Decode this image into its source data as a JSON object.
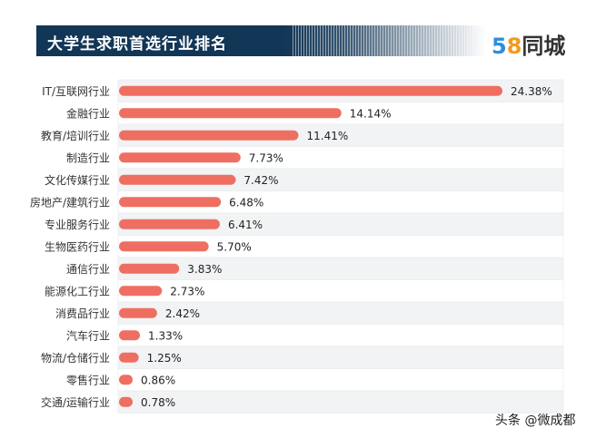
{
  "chart_data": {
    "type": "bar",
    "orientation": "horizontal",
    "title": "大学生求职首选行业排名",
    "categories": [
      "IT/互联网行业",
      "金融行业",
      "教育/培训行业",
      "制造行业",
      "文化传媒行业",
      "房地产/建筑行业",
      "专业服务行业",
      "生物医药行业",
      "通信行业",
      "能源化工行业",
      "消费品行业",
      "汽车行业",
      "物流/仓储行业",
      "零售行业",
      "交通/运输行业"
    ],
    "values": [
      24.38,
      14.14,
      11.41,
      7.73,
      7.42,
      6.48,
      6.41,
      5.7,
      3.83,
      2.73,
      2.42,
      1.33,
      1.25,
      0.86,
      0.78
    ],
    "labels": [
      "24.38%",
      "14.14%",
      "11.41%",
      "7.73%",
      "7.42%",
      "6.48%",
      "6.41%",
      "5.70%",
      "3.83%",
      "2.73%",
      "2.42%",
      "1.33%",
      "1.25%",
      "0.86%",
      "0.78%"
    ],
    "unit": "%",
    "bar_color": "#ee6f62",
    "row_stripe_color": "#f1f3f4",
    "grid": false
  },
  "header": {
    "title_bg": "#123656"
  },
  "logo": {
    "num5": "5",
    "num8": "8",
    "text": "同城"
  },
  "watermark": "头条 @微成都"
}
